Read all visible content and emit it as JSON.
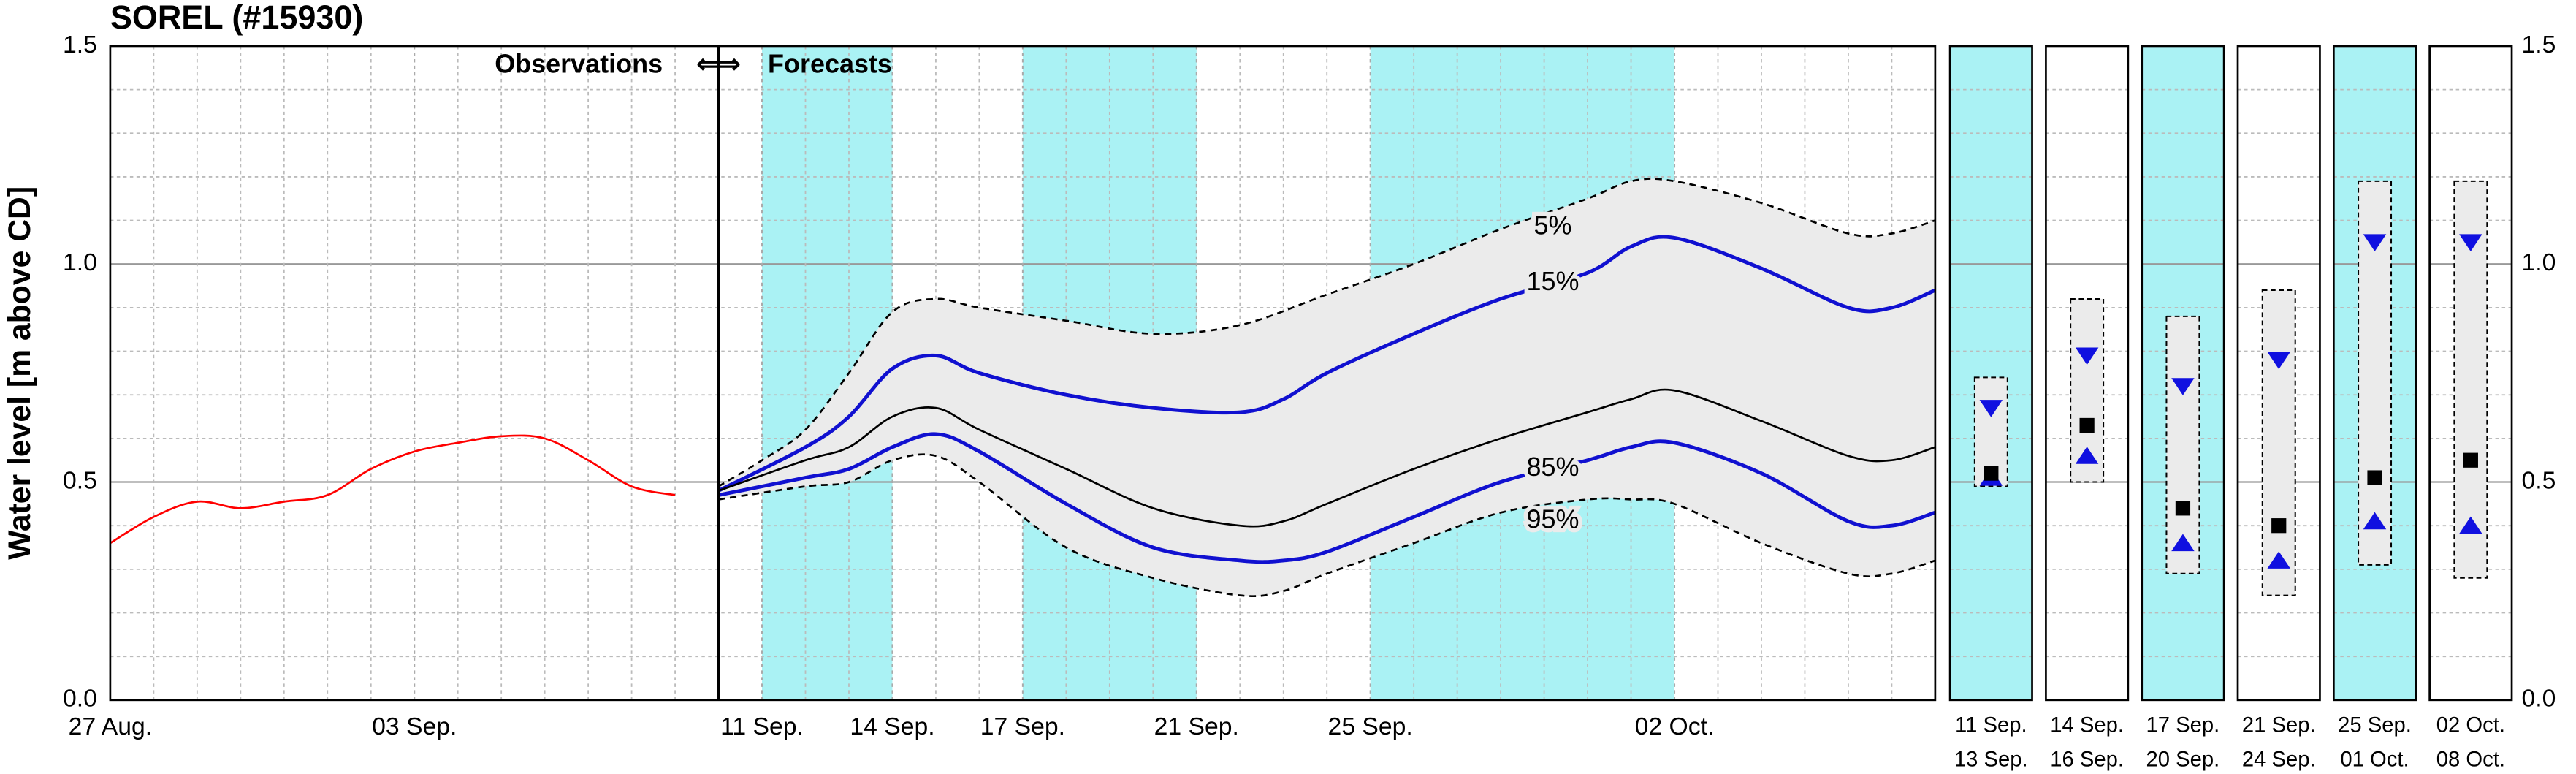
{
  "chart_data": {
    "type": "line",
    "title": "SOREL (#15930)",
    "y_label": "Water level [m above CD]",
    "ylim": [
      0,
      1.5
    ],
    "yticks": [
      {
        "value": 0,
        "label": "0.0"
      },
      {
        "value": 0.5,
        "label": "0.5"
      },
      {
        "value": 1,
        "label": "1.0"
      },
      {
        "value": 1.5,
        "label": "1.5"
      }
    ],
    "yminorticks": [
      0.1,
      0.2,
      0.3,
      0.4,
      0.6,
      0.7,
      0.8,
      0.9,
      1.1,
      1.2,
      1.3,
      1.4
    ],
    "xlim": [
      0,
      42
    ],
    "xticks": [
      {
        "value": 0,
        "label": "27 Aug."
      },
      {
        "value": 7,
        "label": "03 Sep."
      },
      {
        "value": 15,
        "label": "11 Sep."
      },
      {
        "value": 18,
        "label": "14 Sep."
      },
      {
        "value": 21,
        "label": "17 Sep."
      },
      {
        "value": 25,
        "label": "21 Sep."
      },
      {
        "value": 29,
        "label": "25 Sep."
      },
      {
        "value": 36,
        "label": "02 Oct."
      }
    ],
    "xminorticks": [
      1,
      2,
      3,
      4,
      5,
      6,
      8,
      9,
      10,
      11,
      12,
      13,
      14,
      16,
      17,
      19,
      20,
      22,
      23,
      24,
      26,
      27,
      28,
      30,
      31,
      32,
      33,
      34,
      35,
      37,
      38,
      39,
      40,
      41
    ],
    "grid": true,
    "divider_x": 14,
    "annotations": [
      "Observations",
      "⇐⇒",
      "Forecasts"
    ],
    "shaded_periods": [
      [
        15,
        18
      ],
      [
        21,
        25
      ],
      [
        29,
        36
      ]
    ],
    "shade_color": "#aaf2f4",
    "band_color": "#ebebeb",
    "band_between": [
      1,
      5
    ],
    "series": [
      {
        "color": "#ff0000",
        "width": 1.2,
        "x": [
          0,
          1,
          2,
          3,
          4,
          5,
          6,
          7,
          8,
          9,
          10,
          11,
          12,
          13
        ],
        "values": [
          0.36,
          0.42,
          0.455,
          0.44,
          0.455,
          0.47,
          0.53,
          0.57,
          0.59,
          0.605,
          0.6,
          0.55,
          0.49,
          0.47
        ]
      },
      {
        "name": "5%",
        "color": "#000000",
        "dash": true,
        "width": 1.2,
        "x": [
          14,
          15,
          16,
          17,
          18,
          19,
          20,
          22,
          24,
          26,
          28,
          30,
          32,
          34,
          35,
          36,
          38,
          40,
          41,
          42
        ],
        "values": [
          0.49,
          0.55,
          0.62,
          0.75,
          0.89,
          0.92,
          0.9,
          0.87,
          0.84,
          0.86,
          0.93,
          1.0,
          1.08,
          1.15,
          1.19,
          1.19,
          1.14,
          1.07,
          1.07,
          1.1
        ]
      },
      {
        "name": "15%",
        "color": "#1010d0",
        "width": 2.2,
        "x": [
          14,
          16,
          17,
          18,
          19,
          20,
          22,
          24,
          26,
          27,
          28,
          30,
          32,
          34,
          35,
          36,
          38,
          40,
          41,
          42
        ],
        "values": [
          0.48,
          0.58,
          0.65,
          0.76,
          0.79,
          0.75,
          0.7,
          0.67,
          0.66,
          0.69,
          0.75,
          0.84,
          0.92,
          0.98,
          1.04,
          1.06,
          0.99,
          0.9,
          0.9,
          0.94
        ]
      },
      {
        "color": "#000000",
        "width": 1.2,
        "x": [
          14,
          16,
          17,
          18,
          19,
          20,
          22,
          24,
          26,
          27,
          28,
          30,
          32,
          34,
          35,
          36,
          38,
          40,
          41,
          42
        ],
        "values": [
          0.48,
          0.55,
          0.58,
          0.65,
          0.67,
          0.62,
          0.53,
          0.44,
          0.4,
          0.41,
          0.45,
          0.53,
          0.6,
          0.66,
          0.69,
          0.71,
          0.64,
          0.56,
          0.55,
          0.58
        ]
      },
      {
        "name": "85%",
        "color": "#1010d0",
        "width": 2.2,
        "x": [
          14,
          16,
          17,
          18,
          19,
          20,
          22,
          24,
          26,
          27,
          28,
          30,
          32,
          34,
          35,
          36,
          38,
          40,
          41,
          42
        ],
        "values": [
          0.47,
          0.51,
          0.53,
          0.58,
          0.61,
          0.57,
          0.45,
          0.35,
          0.32,
          0.32,
          0.34,
          0.42,
          0.5,
          0.55,
          0.58,
          0.59,
          0.52,
          0.41,
          0.4,
          0.43
        ]
      },
      {
        "name": "95%",
        "color": "#000000",
        "dash": true,
        "width": 1.2,
        "x": [
          14,
          16,
          17,
          18,
          19,
          20,
          22,
          24,
          26,
          27,
          28,
          30,
          32,
          34,
          35,
          36,
          38,
          40,
          41,
          42
        ],
        "values": [
          0.46,
          0.49,
          0.5,
          0.55,
          0.56,
          0.5,
          0.35,
          0.28,
          0.24,
          0.25,
          0.29,
          0.36,
          0.43,
          0.46,
          0.46,
          0.45,
          0.36,
          0.29,
          0.29,
          0.32
        ]
      }
    ],
    "panels": [
      {
        "label_top": "11 Sep.",
        "label_bottom": "13 Sep.",
        "shaded": true,
        "range": [
          0.49,
          0.74
        ],
        "median": 0.52,
        "down_marker": 0.67,
        "up_marker": 0.51
      },
      {
        "label_top": "14 Sep.",
        "label_bottom": "16 Sep.",
        "shaded": false,
        "range": [
          0.5,
          0.92
        ],
        "median": 0.63,
        "down_marker": 0.79,
        "up_marker": 0.56
      },
      {
        "label_top": "17 Sep.",
        "label_bottom": "20 Sep.",
        "shaded": true,
        "range": [
          0.29,
          0.88
        ],
        "median": 0.44,
        "down_marker": 0.72,
        "up_marker": 0.36
      },
      {
        "label_top": "21 Sep.",
        "label_bottom": "24 Sep.",
        "shaded": false,
        "range": [
          0.24,
          0.94
        ],
        "median": 0.4,
        "down_marker": 0.78,
        "up_marker": 0.32
      },
      {
        "label_top": "25 Sep.",
        "label_bottom": "01 Oct.",
        "shaded": true,
        "range": [
          0.31,
          1.19
        ],
        "median": 0.51,
        "down_marker": 1.05,
        "up_marker": 0.41
      },
      {
        "label_top": "02 Oct.",
        "label_bottom": "08 Oct.",
        "shaded": false,
        "range": [
          0.28,
          1.19
        ],
        "median": 0.55,
        "down_marker": 1.05,
        "up_marker": 0.4
      }
    ],
    "marker_color": "#1010e0"
  }
}
